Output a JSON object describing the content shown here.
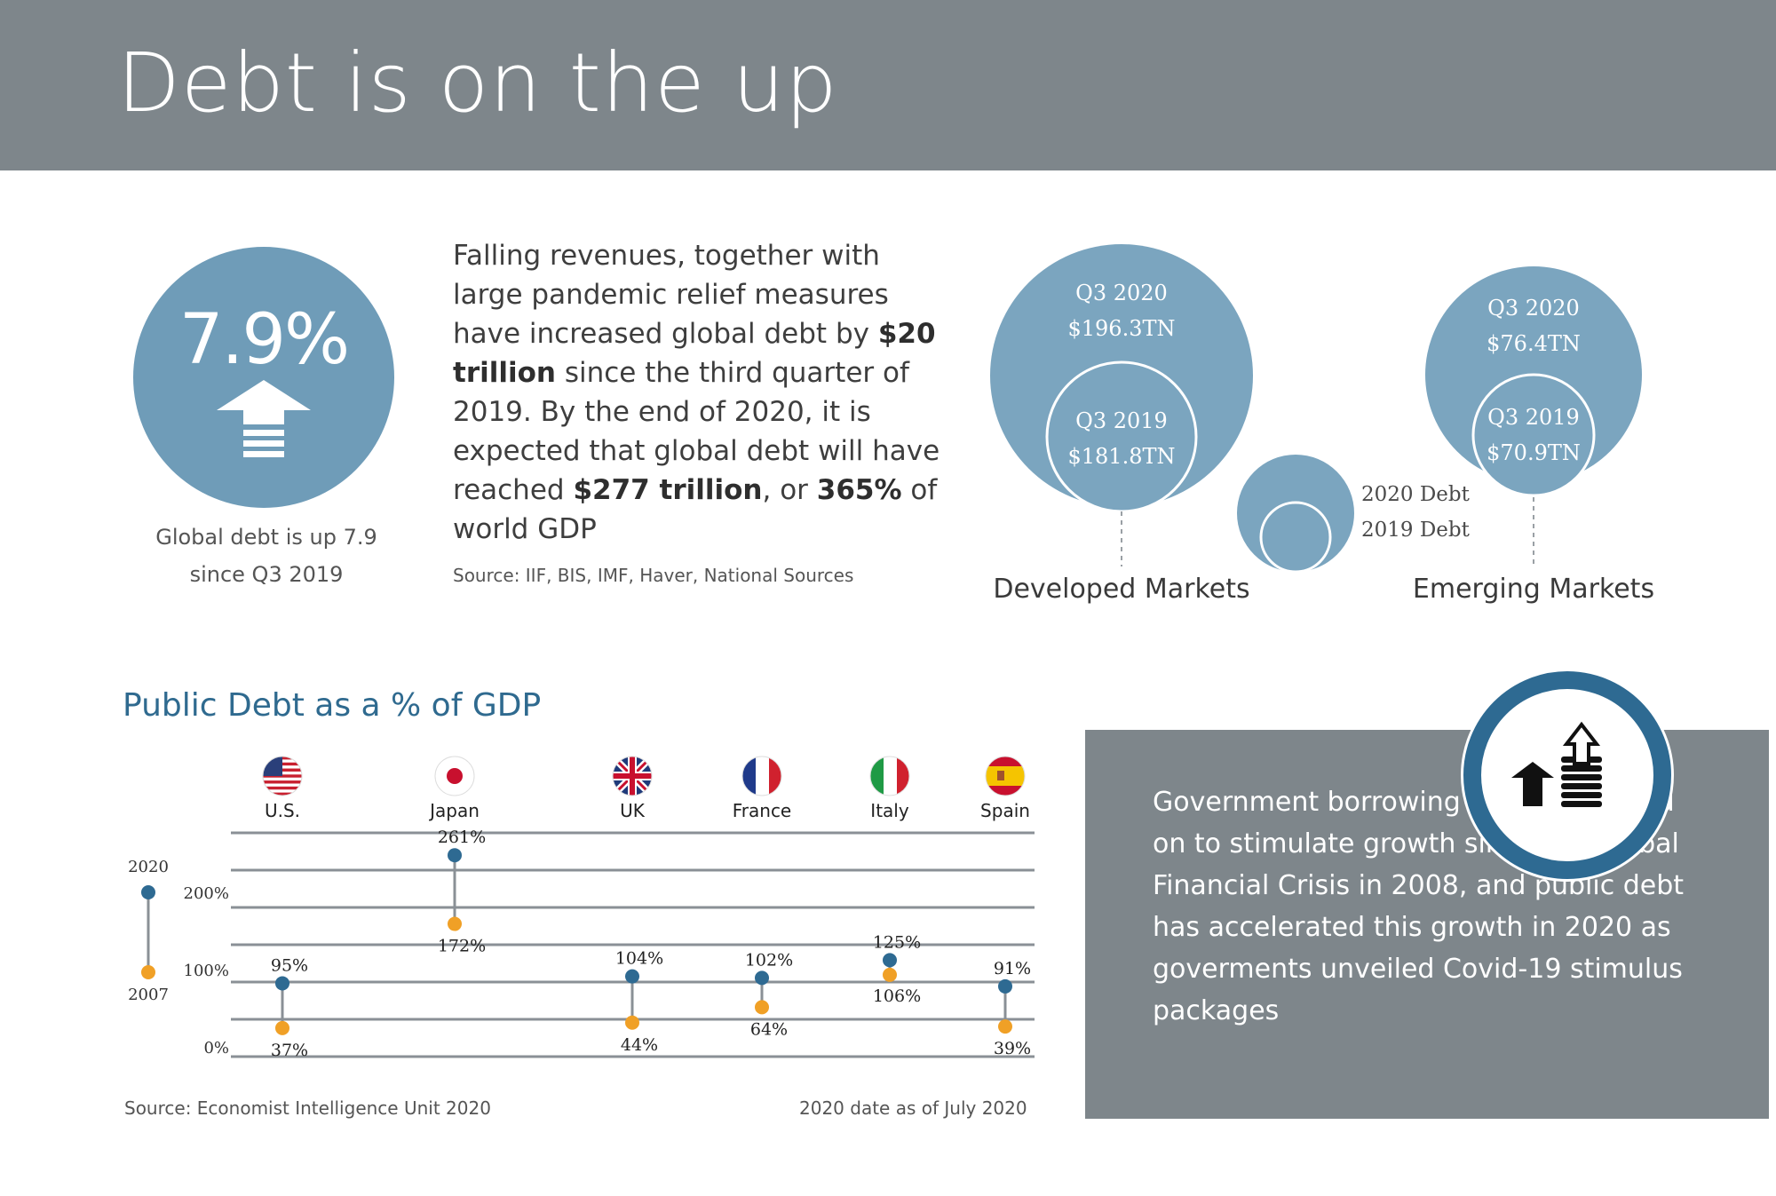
{
  "header": {
    "title": "Debt is on the up"
  },
  "stat": {
    "value": "7.9%",
    "caption_line1": "Global debt is up 7.9",
    "caption_line2": "since Q3 2019"
  },
  "body": {
    "p1": "Falling revenues, together with large pandemic relief measures have increased global debt by ",
    "b1": "$20 trillion",
    "p2": " since the third quarter of 2019. By the end of 2020, it is expected that global debt will have reached ",
    "b2": "$277 trillion",
    "p3": ", or ",
    "b3": "365%",
    "p4": " of world GDP",
    "source": "Source: IIF, BIS, IMF, Haver, National Sources"
  },
  "markets": {
    "developed": {
      "label": "Developed Markets",
      "q2020_label": "Q3 2020",
      "q2020_value": "$196.3TN",
      "q2019_label": "Q3 2019",
      "q2019_value": "$181.8TN"
    },
    "emerging": {
      "label": "Emerging Markets",
      "q2020_label": "Q3 2020",
      "q2020_value": "$76.4TN",
      "q2019_label": "Q3 2019",
      "q2019_value": "$70.9TN"
    },
    "legend": {
      "outer": "2020 Debt",
      "inner": "2019 Debt"
    }
  },
  "colors": {
    "header_bg": "#7e868b",
    "circle_fill": "#6f9cb8",
    "bubble_fill": "#7ba5bf",
    "title_blue": "#2f6a8f",
    "dot_2020": "#2e6a92",
    "dot_2007": "#f0a026",
    "line": "#8a9096"
  },
  "chart_data": {
    "type": "dumbbell",
    "title": "Public Debt as a % of GDP",
    "categories": [
      "U.S.",
      "Japan",
      "UK",
      "France",
      "Italy",
      "Spain"
    ],
    "series": [
      {
        "name": "2020",
        "values": [
          95,
          261,
          104,
          102,
          125,
          91
        ],
        "labels": [
          "95%",
          "261%",
          "104%",
          "102%",
          "125%",
          "91%"
        ]
      },
      {
        "name": "2007",
        "values": [
          37,
          172,
          44,
          64,
          106,
          39
        ],
        "labels": [
          "37%",
          "172%",
          "44%",
          "64%",
          "106%",
          "39%"
        ]
      }
    ],
    "y_ticks": [
      {
        "value": 0,
        "label": "0%"
      },
      {
        "value": 100,
        "label": "100%"
      },
      {
        "value": 200,
        "label": "200%"
      }
    ],
    "legend": {
      "top": "2020",
      "bottom": "2007"
    },
    "ylim": [
      0,
      290
    ],
    "grid": true,
    "icons": [
      "us-flag-icon",
      "japan-flag-icon",
      "uk-flag-icon",
      "france-flag-icon",
      "italy-flag-icon",
      "spain-flag-icon"
    ],
    "source": "Source: Economist Intelligence Unit 2020",
    "note": "2020 date as of July 2020"
  },
  "info": {
    "text": "Government borrowing has been relied on to stimulate growth since the Global Financial Crisis in 2008, and public debt has accelerated this growth in 2020 as goverments unveiled Covid-19 stimulus packages",
    "icon": "growth-coins-icon"
  }
}
